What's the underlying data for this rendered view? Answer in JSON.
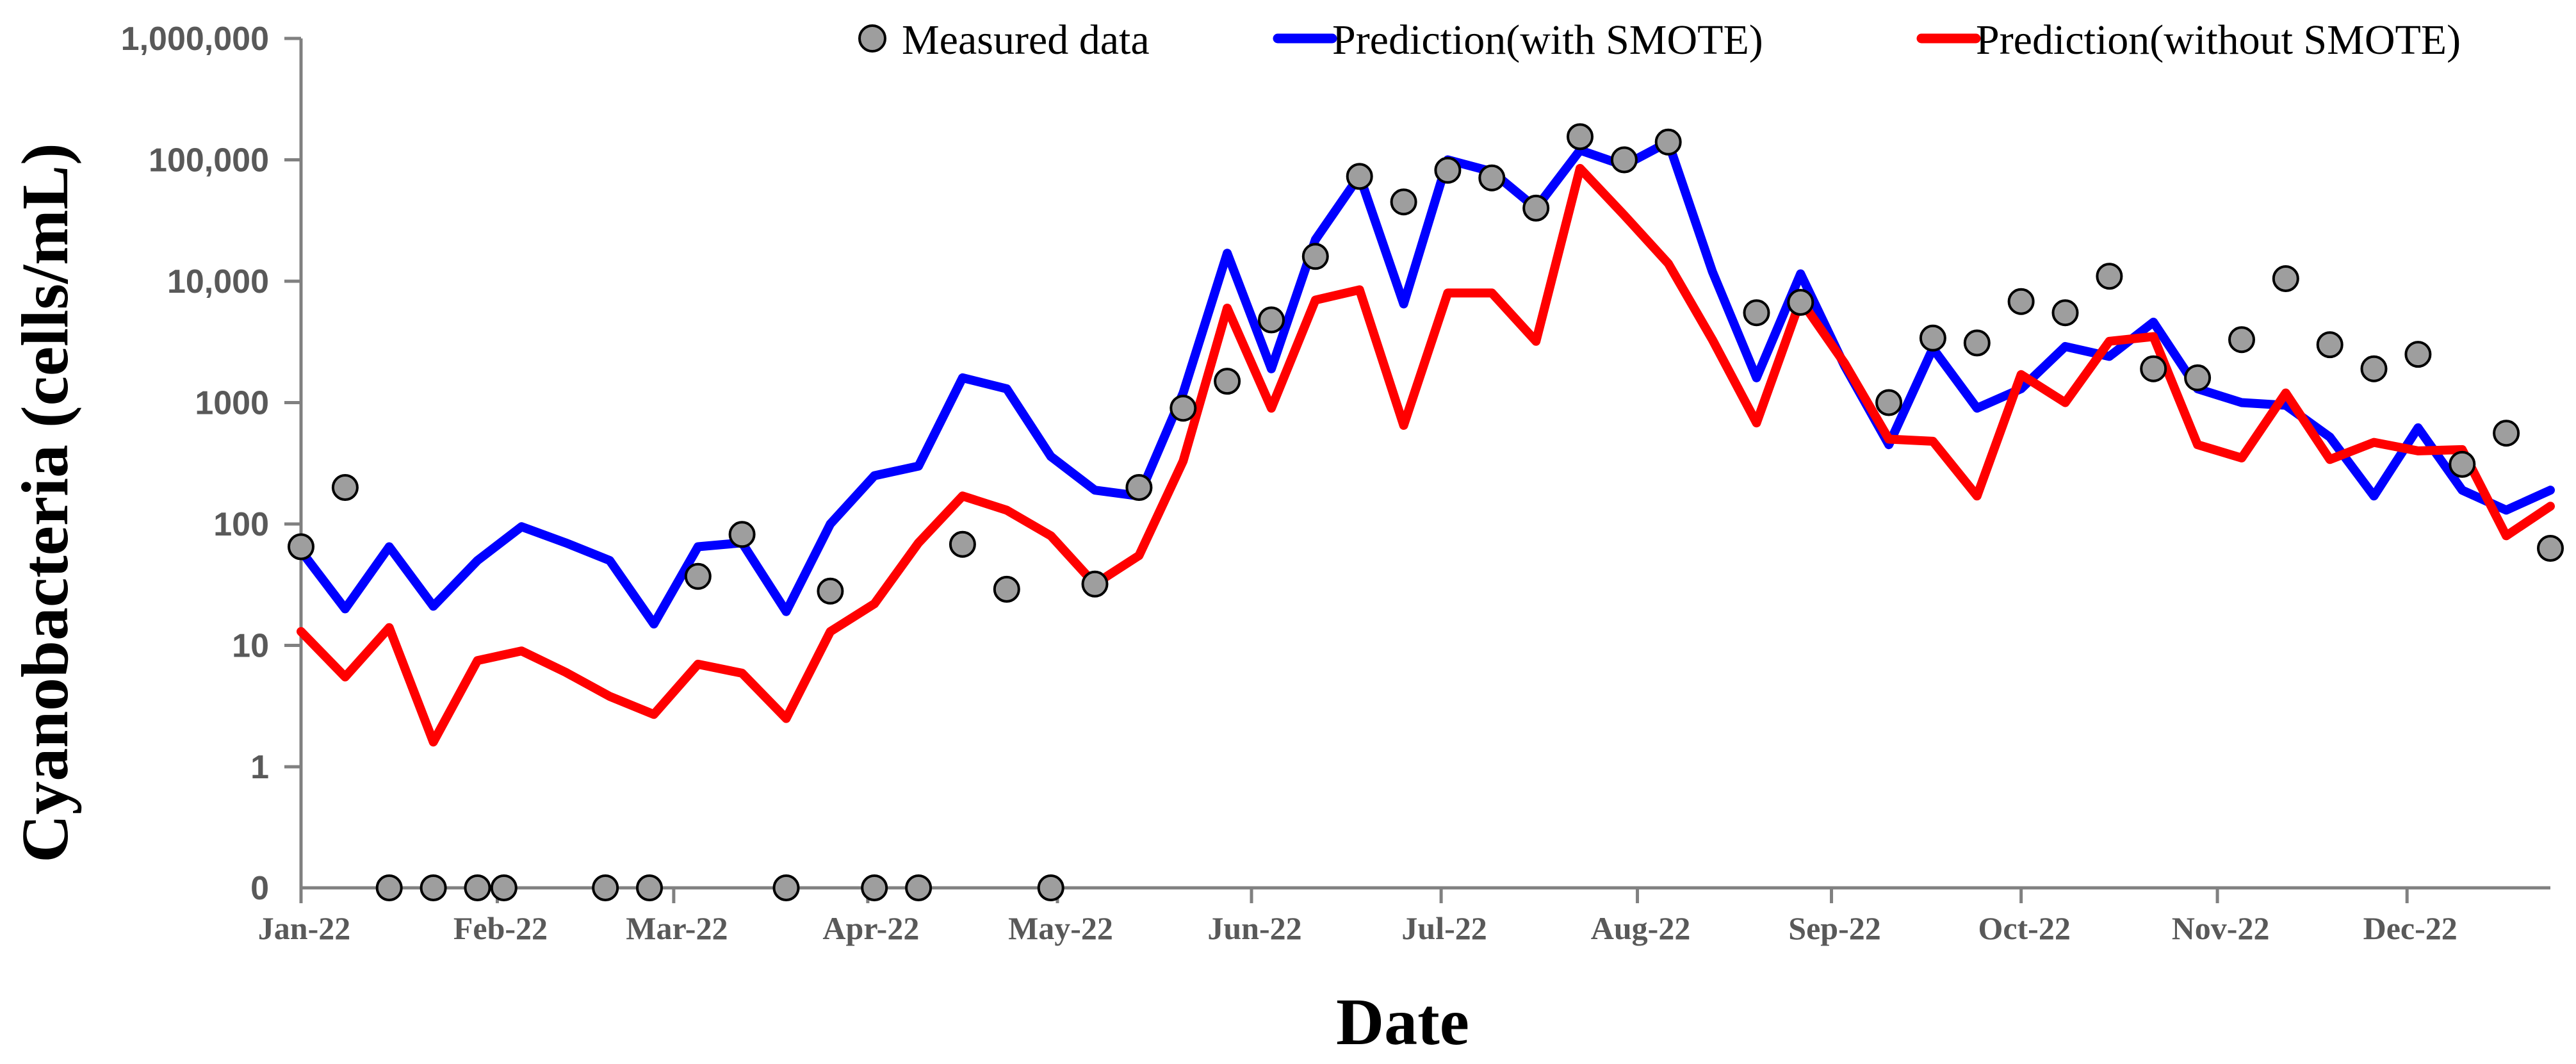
{
  "chart_data": {
    "type": "line",
    "title": "",
    "xlabel": "Date",
    "ylabel": "Cyanobacteria (cells/mL)",
    "y_scale": "log (0 shown at bottom)",
    "y_tick_labels": [
      "1,000,000",
      "100,000",
      "10,000",
      "1000",
      "100",
      "10",
      "1",
      "0"
    ],
    "y_tick_values": [
      1000000,
      100000,
      10000,
      1000,
      100,
      10,
      1,
      0
    ],
    "x_tick_labels": [
      "Jan-22",
      "Feb-22",
      "Mar-22",
      "Apr-22",
      "May-22",
      "Jun-22",
      "Jul-22",
      "Aug-22",
      "Sep-22",
      "Oct-22",
      "Nov-22",
      "Dec-22"
    ],
    "x_domain_weeks": [
      0,
      51
    ],
    "legend": [
      "Measured data",
      "Prediction(with SMOTE)",
      "Prediction(without SMOTE)"
    ],
    "legend_position": "top",
    "colors": {
      "measured": "#9e9e9e",
      "with_smote": "#0000ff",
      "without_smote": "#ff0000"
    },
    "series": [
      {
        "name": "Prediction(with SMOTE)",
        "x": [
          0,
          1,
          2,
          3,
          4,
          5,
          6,
          7,
          8,
          9,
          10,
          11,
          12,
          13,
          14,
          15,
          16,
          17,
          18,
          19,
          20,
          21,
          22,
          23,
          24,
          25,
          26,
          27,
          28,
          29,
          30,
          31,
          32,
          33,
          34,
          35,
          36,
          37,
          38,
          39,
          40,
          41,
          42,
          43,
          44,
          45,
          46,
          47,
          48,
          49,
          50,
          51
        ],
        "values": [
          60,
          20,
          65,
          21,
          50,
          95,
          70,
          50,
          15,
          65,
          70,
          19,
          100,
          250,
          300,
          1600,
          1300,
          360,
          190,
          170,
          1200,
          17000,
          1900,
          22000,
          74000,
          6500,
          100000,
          80000,
          40000,
          120000,
          90000,
          140000,
          12000,
          1600,
          11500,
          2000,
          450,
          2800,
          900,
          1300,
          2900,
          2400,
          4600,
          1300,
          1000,
          950,
          520,
          170,
          620,
          190,
          130,
          190
        ]
      },
      {
        "name": "Prediction(without SMOTE)",
        "x": [
          0,
          1,
          2,
          3,
          4,
          5,
          6,
          7,
          8,
          9,
          10,
          11,
          12,
          13,
          14,
          15,
          16,
          17,
          18,
          19,
          20,
          21,
          22,
          23,
          24,
          25,
          26,
          27,
          28,
          29,
          30,
          31,
          32,
          33,
          34,
          35,
          36,
          37,
          38,
          39,
          40,
          41,
          42,
          43,
          44,
          45,
          46,
          47,
          48,
          49,
          50,
          51
        ],
        "values": [
          13,
          5.5,
          14,
          1.6,
          7.5,
          9,
          6,
          3.8,
          2.7,
          7,
          5.9,
          2.5,
          13,
          22,
          70,
          170,
          130,
          80,
          32,
          55,
          330,
          6000,
          900,
          7000,
          8500,
          650,
          8000,
          8000,
          3200,
          85000,
          35000,
          14000,
          3300,
          680,
          7000,
          2100,
          500,
          480,
          170,
          1700,
          1000,
          3200,
          3500,
          450,
          350,
          1200,
          340,
          470,
          400,
          410,
          80,
          140
        ]
      },
      {
        "name": "Measured data",
        "x": [
          0,
          1,
          2,
          3,
          4,
          4.6,
          6.9,
          7.9,
          9,
          10,
          11,
          12,
          13,
          14,
          15,
          16,
          17,
          18,
          19,
          20,
          21,
          22,
          23,
          24,
          25,
          26,
          27,
          28,
          29,
          30,
          31,
          33,
          34,
          36,
          37,
          38,
          39,
          40,
          41,
          42,
          43,
          44,
          45,
          46,
          47,
          48,
          49,
          50,
          51
        ],
        "values": [
          65,
          200,
          0,
          0,
          0,
          0,
          0,
          0,
          37,
          82,
          0,
          28,
          0,
          0,
          68,
          29,
          0,
          32,
          200,
          900,
          1500,
          4800,
          16000,
          73000,
          45000,
          82000,
          71000,
          40000,
          155000,
          100000,
          140000,
          5500,
          6700,
          1000,
          3400,
          3100,
          6800,
          5500,
          11000,
          1900,
          1600,
          3300,
          10500,
          3000,
          1900,
          2500,
          310,
          560,
          63
        ]
      }
    ]
  }
}
